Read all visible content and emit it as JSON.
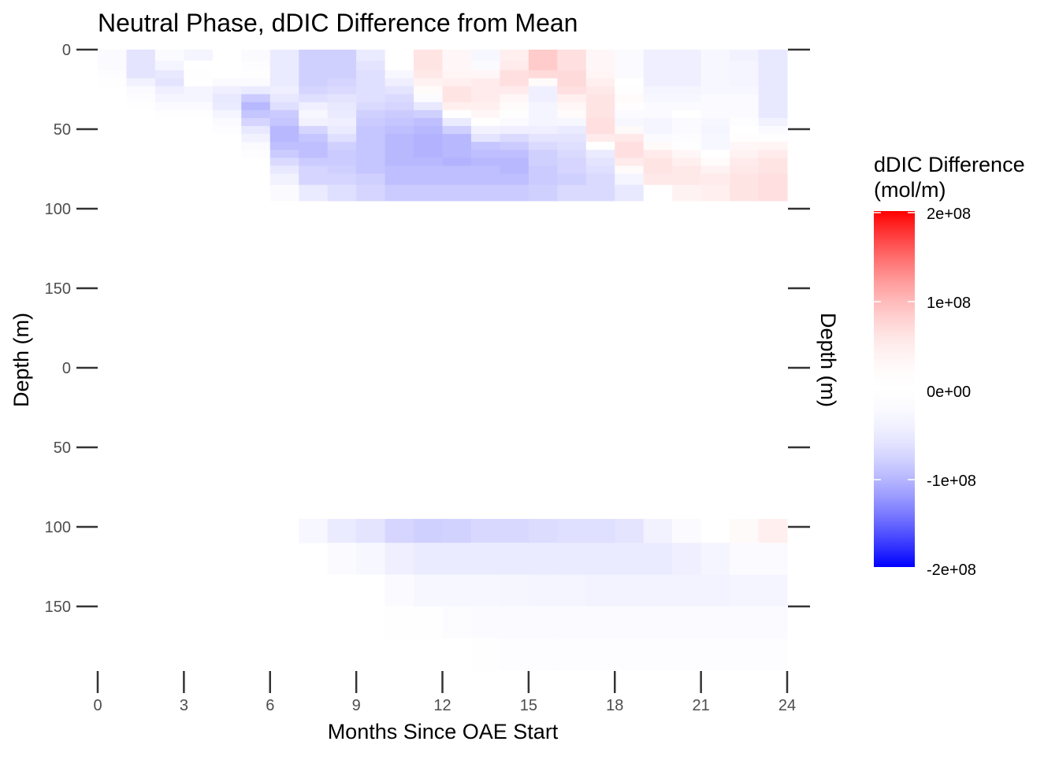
{
  "chart_data": {
    "type": "heatmap",
    "title": "Neutral Phase, dDIC Difference from Mean",
    "xlabel": "Months Since OAE Start",
    "ylabel": "Depth (m)",
    "ylabel_right": "Depth (m)",
    "xlim": [
      0,
      24
    ],
    "x_ticks": [
      "0",
      "3",
      "6",
      "9",
      "12",
      "15",
      "18",
      "21",
      "24"
    ],
    "y_ticks": [
      "0",
      "50",
      "100",
      "150"
    ],
    "grid": false,
    "legend": {
      "title_line1": "dDIC Difference",
      "title_line2": "(mol/m)",
      "placement": "right",
      "limits": [
        -200000000.0,
        200000000.0
      ],
      "labels": [
        "2e+08",
        "1e+08",
        "0e+00",
        "-1e+08",
        "-2e+08"
      ],
      "low_color": "#0000FF",
      "mid_color": "#FFFFFF",
      "high_color": "#FF0000"
    },
    "months": [
      0,
      1,
      2,
      3,
      4,
      5,
      6,
      7,
      8,
      9,
      10,
      11,
      12,
      13,
      14,
      15,
      16,
      17,
      18,
      19,
      20,
      21,
      22,
      23
    ],
    "panels": [
      {
        "ylim": [
          0,
          190
        ],
        "depth_bins": [
          0,
          7,
          13,
          18,
          23,
          28,
          33,
          38,
          43,
          48,
          53,
          58,
          63,
          68,
          73,
          78,
          85,
          95
        ],
        "values_by_month": [
          [
            -20000000.0,
            -20000000.0,
            -15000000.0,
            -10000000.0,
            -5000000.0,
            -5000000.0,
            -5000000.0,
            -2000000.0,
            -2000000.0,
            -2000000.0,
            -2000000.0,
            -2000000.0,
            0,
            0,
            0,
            0,
            0
          ],
          [
            -60000000.0,
            -60000000.0,
            -60000000.0,
            -40000000.0,
            -25000000.0,
            -15000000.0,
            -10000000.0,
            -5000000.0,
            -5000000.0,
            -5000000.0,
            -5000000.0,
            -2000000.0,
            0,
            0,
            0,
            0,
            0
          ],
          [
            -20000000.0,
            -35000000.0,
            -55000000.0,
            -60000000.0,
            -45000000.0,
            -35000000.0,
            -25000000.0,
            -10000000.0,
            -5000000.0,
            -2000000.0,
            -2000000.0,
            -2000000.0,
            -2000000.0,
            -2000000.0,
            -2000000.0,
            0,
            0
          ],
          [
            -35000000.0,
            0,
            10000000.0,
            0,
            -35000000.0,
            -35000000.0,
            -25000000.0,
            -10000000.0,
            -2000000.0,
            -2000000.0,
            -2000000.0,
            -2000000.0,
            -2000000.0,
            -2000000.0,
            -2000000.0,
            0,
            0
          ],
          [
            0,
            0,
            0,
            -25000000.0,
            -45000000.0,
            -55000000.0,
            -50000000.0,
            -35000000.0,
            -25000000.0,
            -15000000.0,
            -2000000.0,
            0,
            0,
            0,
            0,
            0,
            0
          ],
          [
            -20000000.0,
            -15000000.0,
            -10000000.0,
            -20000000.0,
            -50000000.0,
            -85000000.0,
            -100000000.0,
            -90000000.0,
            -75000000.0,
            -55000000.0,
            -40000000.0,
            -25000000.0,
            -15000000.0,
            -5000000.0,
            0,
            0,
            0
          ],
          [
            -50000000.0,
            -50000000.0,
            -50000000.0,
            -50000000.0,
            -45000000.0,
            -55000000.0,
            -65000000.0,
            -85000000.0,
            -90000000.0,
            -100000000.0,
            -100000000.0,
            -95000000.0,
            -85000000.0,
            -70000000.0,
            -55000000.0,
            -40000000.0,
            -20000000.0
          ],
          [
            -80000000.0,
            -80000000.0,
            -80000000.0,
            -80000000.0,
            -75000000.0,
            -65000000.0,
            -45000000.0,
            -30000000.0,
            -40000000.0,
            -75000000.0,
            -90000000.0,
            -95000000.0,
            -95000000.0,
            -85000000.0,
            -75000000.0,
            -75000000.0,
            -50000000.0
          ],
          [
            -80000000.0,
            -80000000.0,
            -80000000.0,
            -75000000.0,
            -70000000.0,
            -60000000.0,
            -55000000.0,
            -50000000.0,
            -45000000.0,
            -50000000.0,
            -65000000.0,
            -80000000.0,
            -85000000.0,
            -85000000.0,
            -80000000.0,
            -75000000.0,
            -65000000.0
          ],
          [
            -50000000.0,
            -60000000.0,
            -65000000.0,
            -65000000.0,
            -65000000.0,
            -65000000.0,
            -70000000.0,
            -80000000.0,
            -85000000.0,
            -90000000.0,
            -90000000.0,
            -90000000.0,
            -90000000.0,
            -90000000.0,
            -90000000.0,
            -80000000.0,
            -75000000.0
          ],
          [
            5000000.0,
            0,
            -30000000.0,
            -45000000.0,
            -60000000.0,
            -70000000.0,
            -75000000.0,
            -85000000.0,
            -90000000.0,
            -95000000.0,
            -100000000.0,
            -100000000.0,
            -100000000.0,
            -100000000.0,
            -95000000.0,
            -95000000.0,
            -85000000.0
          ],
          [
            60000000.0,
            60000000.0,
            55000000.0,
            40000000.0,
            20000000.0,
            -20000000.0,
            -55000000.0,
            -80000000.0,
            -95000000.0,
            -100000000.0,
            -105000000.0,
            -105000000.0,
            -105000000.0,
            -100000000.0,
            -95000000.0,
            -95000000.0,
            -85000000.0
          ],
          [
            30000000.0,
            30000000.0,
            35000000.0,
            45000000.0,
            60000000.0,
            60000000.0,
            45000000.0,
            0,
            -50000000.0,
            -80000000.0,
            -100000000.0,
            -100000000.0,
            -100000000.0,
            -105000000.0,
            -95000000.0,
            -95000000.0,
            -85000000.0
          ],
          [
            -30000000.0,
            -20000000.0,
            30000000.0,
            50000000.0,
            50000000.0,
            50000000.0,
            45000000.0,
            30000000.0,
            5000000.0,
            -40000000.0,
            -60000000.0,
            -90000000.0,
            -95000000.0,
            -100000000.0,
            -95000000.0,
            -95000000.0,
            -85000000.0
          ],
          [
            45000000.0,
            50000000.0,
            65000000.0,
            65000000.0,
            50000000.0,
            30000000.0,
            20000000.0,
            10000000.0,
            -20000000.0,
            -45000000.0,
            -70000000.0,
            -85000000.0,
            -95000000.0,
            -100000000.0,
            -100000000.0,
            -95000000.0,
            -85000000.0
          ],
          [
            85000000.0,
            85000000.0,
            70000000.0,
            20000000.0,
            -45000000.0,
            -45000000.0,
            -35000000.0,
            -35000000.0,
            -35000000.0,
            -45000000.0,
            -60000000.0,
            -70000000.0,
            -80000000.0,
            -80000000.0,
            -85000000.0,
            -85000000.0,
            -80000000.0
          ],
          [
            65000000.0,
            65000000.0,
            70000000.0,
            70000000.0,
            65000000.0,
            45000000.0,
            30000000.0,
            20000000.0,
            -30000000.0,
            -50000000.0,
            -60000000.0,
            -65000000.0,
            -70000000.0,
            -75000000.0,
            -75000000.0,
            -80000000.0,
            -70000000.0
          ],
          [
            30000000.0,
            30000000.0,
            35000000.0,
            45000000.0,
            55000000.0,
            60000000.0,
            60000000.0,
            60000000.0,
            65000000.0,
            65000000.0,
            50000000.0,
            0,
            -50000000.0,
            -60000000.0,
            -65000000.0,
            -70000000.0,
            -70000000.0
          ],
          [
            -20000000.0,
            -20000000.0,
            -20000000.0,
            0,
            10000000.0,
            20000000.0,
            15000000.0,
            -20000000.0,
            -30000000.0,
            25000000.0,
            55000000.0,
            65000000.0,
            65000000.0,
            50000000.0,
            20000000.0,
            -35000000.0,
            -55000000.0
          ],
          [
            -45000000.0,
            -45000000.0,
            -45000000.0,
            -45000000.0,
            -35000000.0,
            -30000000.0,
            -25000000.0,
            -25000000.0,
            -35000000.0,
            -35000000.0,
            -25000000.0,
            25000000.0,
            50000000.0,
            60000000.0,
            60000000.0,
            55000000.0,
            0
          ],
          [
            -45000000.0,
            -45000000.0,
            -45000000.0,
            -45000000.0,
            -35000000.0,
            -30000000.0,
            -20000000.0,
            5000000.0,
            -20000000.0,
            -25000000.0,
            -15000000.0,
            -10000000.0,
            30000000.0,
            45000000.0,
            55000000.0,
            55000000.0,
            40000000.0
          ],
          [
            -30000000.0,
            -30000000.0,
            -30000000.0,
            -30000000.0,
            -30000000.0,
            -25000000.0,
            -25000000.0,
            -25000000.0,
            -30000000.0,
            -35000000.0,
            -30000000.0,
            -30000000.0,
            -5000000.0,
            20000000.0,
            40000000.0,
            50000000.0,
            45000000.0
          ],
          [
            -40000000.0,
            -35000000.0,
            -35000000.0,
            -35000000.0,
            -30000000.0,
            -25000000.0,
            -25000000.0,
            -20000000.0,
            -15000000.0,
            0,
            15000000.0,
            30000000.0,
            40000000.0,
            50000000.0,
            55000000.0,
            60000000.0,
            60000000.0
          ],
          [
            -55000000.0,
            -55000000.0,
            -55000000.0,
            -55000000.0,
            -55000000.0,
            -55000000.0,
            -55000000.0,
            -55000000.0,
            -40000000.0,
            -20000000.0,
            10000000.0,
            35000000.0,
            50000000.0,
            60000000.0,
            60000000.0,
            65000000.0,
            65000000.0
          ]
        ]
      },
      {
        "ylim": [
          0,
          190
        ],
        "depth_bins": [
          95,
          110,
          130,
          150,
          170,
          190
        ],
        "values_by_month": [
          [
            null,
            null,
            null,
            null,
            null
          ],
          [
            null,
            null,
            null,
            null,
            null
          ],
          [
            null,
            null,
            null,
            null,
            null
          ],
          [
            null,
            null,
            null,
            null,
            null
          ],
          [
            null,
            null,
            null,
            null,
            null
          ],
          [
            null,
            null,
            null,
            null,
            null
          ],
          [
            -5000000.0,
            null,
            null,
            null,
            null
          ],
          [
            -30000000.0,
            null,
            null,
            null,
            null
          ],
          [
            -50000000.0,
            -20000000.0,
            -5000000.0,
            null,
            null
          ],
          [
            -60000000.0,
            -30000000.0,
            -5000000.0,
            -5000000.0,
            null
          ],
          [
            -75000000.0,
            -45000000.0,
            -20000000.0,
            -10000000.0,
            -5000000.0
          ],
          [
            -80000000.0,
            -50000000.0,
            -30000000.0,
            -12000000.0,
            -5000000.0
          ],
          [
            -78000000.0,
            -50000000.0,
            -30000000.0,
            -18000000.0,
            -5000000.0
          ],
          [
            -72000000.0,
            -50000000.0,
            -30000000.0,
            -20000000.0,
            -12000000.0
          ],
          [
            -72000000.0,
            -50000000.0,
            -32000000.0,
            -22000000.0,
            -15000000.0
          ],
          [
            -68000000.0,
            -50000000.0,
            -35000000.0,
            -22000000.0,
            -15000000.0
          ],
          [
            -65000000.0,
            -50000000.0,
            -35000000.0,
            -22000000.0,
            -15000000.0
          ],
          [
            -65000000.0,
            -50000000.0,
            -38000000.0,
            -22000000.0,
            -15000000.0
          ],
          [
            -60000000.0,
            -50000000.0,
            -38000000.0,
            -22000000.0,
            -15000000.0
          ],
          [
            -40000000.0,
            -50000000.0,
            -38000000.0,
            -22000000.0,
            -15000000.0
          ],
          [
            -20000000.0,
            -45000000.0,
            -38000000.0,
            -22000000.0,
            -15000000.0
          ],
          [
            5000000.0,
            -35000000.0,
            -38000000.0,
            -22000000.0,
            -15000000.0
          ],
          [
            25000000.0,
            -20000000.0,
            -35000000.0,
            -22000000.0,
            -15000000.0
          ],
          [
            45000000.0,
            -20000000.0,
            -35000000.0,
            -22000000.0,
            -15000000.0
          ]
        ]
      }
    ]
  }
}
